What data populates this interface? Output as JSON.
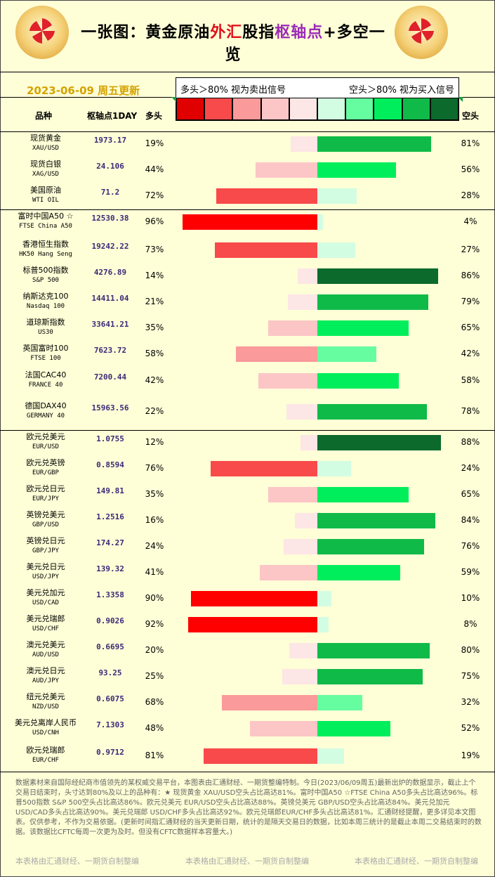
{
  "header": {
    "title_parts": [
      {
        "text": "一张图：黄金原油",
        "color": "#000000"
      },
      {
        "text": "外汇",
        "color": "#e0101a"
      },
      {
        "text": "股指",
        "color": "#000000"
      },
      {
        "text": "枢轴点",
        "color": "#9a2bb8"
      },
      {
        "text": "+多空一览",
        "color": "#000000"
      }
    ],
    "date": "2023-06-09 周五更新",
    "legend_left": "多头＞80% 视为卖出信号",
    "legend_right": "空头＞80% 视为买入信号",
    "legend_colors": [
      "#e00000",
      "#f84a4a",
      "#fa9a9a",
      "#fcc6c6",
      "#fde6e6",
      "#d2fde2",
      "#66fca0",
      "#00ee5c",
      "#10ba48",
      "#0b6a2c"
    ],
    "col_symbol": "品种",
    "col_pivot": "枢轴点1DAY",
    "col_long": "多头",
    "col_short": "空头"
  },
  "colors": {
    "long_scale": [
      "#fde6e6",
      "#fcc6c6",
      "#fa9a9a",
      "#f84a4a",
      "#ff0000"
    ],
    "short_scale": [
      "#d2fde2",
      "#66fca0",
      "#00ee5c",
      "#10ba48",
      "#0b6a2c"
    ]
  },
  "chart_data": {
    "type": "bar",
    "rows": [
      {
        "name": "现货黄金",
        "code": "XAU/USD",
        "pivot": "1973.17",
        "long": 19,
        "short": 81
      },
      {
        "name": "现货白银",
        "code": "XAG/USD",
        "pivot": "24.106",
        "long": 44,
        "short": 56
      },
      {
        "name": "美国原油",
        "code": "WTI OIL",
        "pivot": "71.2",
        "long": 72,
        "short": 28
      },
      {
        "name": "富时中国A50 ☆",
        "code": "FTSE China A50",
        "pivot": "12530.38",
        "long": 96,
        "short": 4
      },
      {
        "name": "香港恒生指数",
        "code": "HK50 Hang Seng",
        "pivot": "19242.22",
        "long": 73,
        "short": 27
      },
      {
        "name": "标普500指数",
        "code": "S&P 500",
        "pivot": "4276.89",
        "long": 14,
        "short": 86
      },
      {
        "name": "纳斯达克100",
        "code": "Nasdaq 100",
        "pivot": "14411.04",
        "long": 21,
        "short": 79
      },
      {
        "name": "道琼斯指数",
        "code": "US30",
        "pivot": "33641.21",
        "long": 35,
        "short": 65
      },
      {
        "name": "英国富时100",
        "code": "FTSE 100",
        "pivot": "7623.72",
        "long": 58,
        "short": 42
      },
      {
        "name": "法国CAC40",
        "code": "FRANCE 40",
        "pivot": "7200.44",
        "long": 42,
        "short": 58
      },
      {
        "name": "德国DAX40",
        "code": "GERMANY 40",
        "pivot": "15963.56",
        "long": 22,
        "short": 78
      },
      {
        "name": "欧元兑美元",
        "code": "EUR/USD",
        "pivot": "1.0755",
        "long": 12,
        "short": 88
      },
      {
        "name": "欧元兑英镑",
        "code": "EUR/GBP",
        "pivot": "0.8594",
        "long": 76,
        "short": 24
      },
      {
        "name": "欧元兑日元",
        "code": "EUR/JPY",
        "pivot": "149.81",
        "long": 35,
        "short": 65
      },
      {
        "name": "英镑兑美元",
        "code": "GBP/USD",
        "pivot": "1.2516",
        "long": 16,
        "short": 84
      },
      {
        "name": "英镑兑日元",
        "code": "GBP/JPY",
        "pivot": "174.27",
        "long": 24,
        "short": 76
      },
      {
        "name": "美元兑日元",
        "code": "USD/JPY",
        "pivot": "139.32",
        "long": 41,
        "short": 59
      },
      {
        "name": "美元兑加元",
        "code": "USD/CAD",
        "pivot": "1.3358",
        "long": 90,
        "short": 10
      },
      {
        "name": "美元兑瑞郎",
        "code": "USD/CHF",
        "pivot": "0.9026",
        "long": 92,
        "short": 8
      },
      {
        "name": "澳元兑美元",
        "code": "AUD/USD",
        "pivot": "0.6695",
        "long": 20,
        "short": 80
      },
      {
        "name": "澳元兑日元",
        "code": "AUD/JPY",
        "pivot": "93.25",
        "long": 25,
        "short": 75
      },
      {
        "name": "纽元兑美元",
        "code": "NZD/USD",
        "pivot": "0.6075",
        "long": 68,
        "short": 32
      },
      {
        "name": "美元兑离岸人民币",
        "code": "USD/CNH",
        "pivot": "7.1303",
        "long": 48,
        "short": 52
      },
      {
        "name": "欧元兑瑞郎",
        "code": "EUR/CHF",
        "pivot": "0.9712",
        "long": 81,
        "short": 19
      }
    ]
  },
  "note": "数据素材来自国际经纪商市值领先的某权威交易平台，本图表由汇通财经、一期货整编特制。今日(2023/06/09周五)最新出炉的数据显示，截止上个交易日结束时，头寸达到80%及以上的品种有：★ 现货黄金 XAU/USD空头占比高达81%。富时中国A50 ☆FTSE China A50多头占比高达96%。标普500指数 S&P 500空头占比高达86%。欧元兑美元 EUR/USD空头占比高达88%。英镑兑美元 GBP/USD空头占比高达84%。美元兑加元 USD/CAD多头占比高达90%。美元兑瑞郎 USD/CHF多头占比高达92%。欧元兑瑞郎EUR/CHF多头占比高达81%。汇通财经提醒，更多详见本文图表。仅供参考，不作为交易依据。(更新时间指汇通财经的当天更新日期，统计的是隔天交易日的数据，比如本周三统计的是截止本周二交易结束时的数据。该数据比CFTC每周一次更为及时。但没有CFTC数据样本容量大。)",
  "footer": [
    "本表格由汇通财经、一期货自制整编",
    "本表格由汇通财经、一期货自制整编",
    "本表格由汇通财经、一期货自制整编"
  ]
}
